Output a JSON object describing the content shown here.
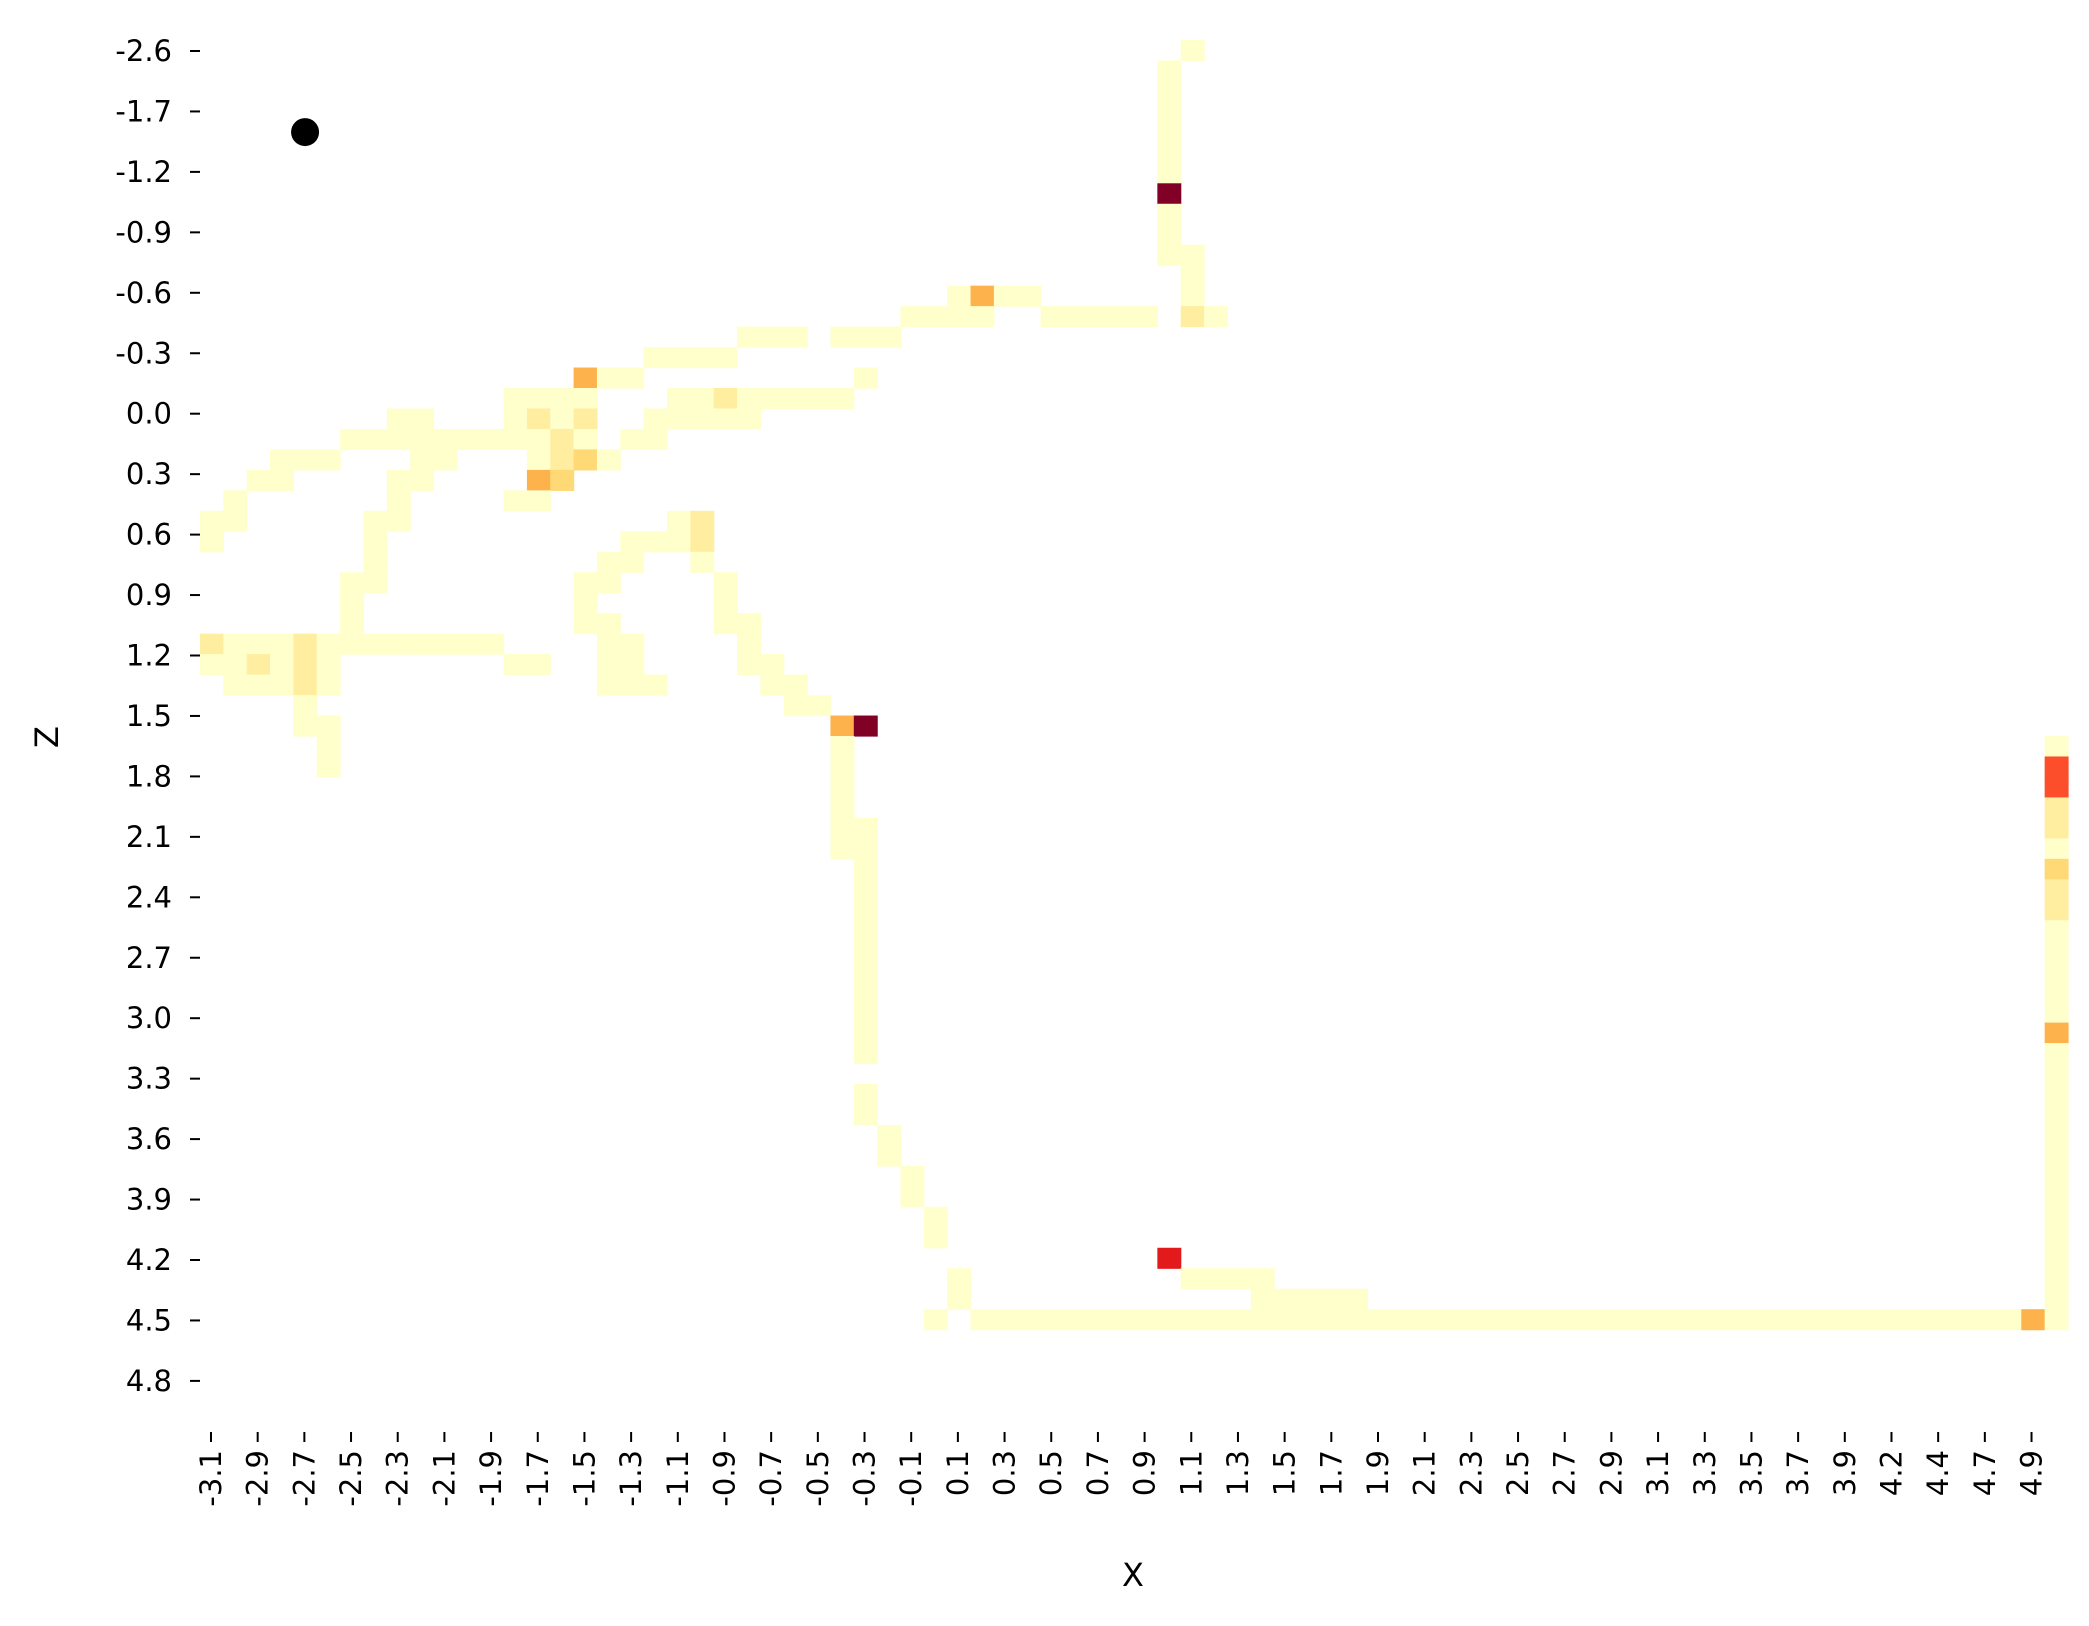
{
  "chart_data": {
    "type": "heatmap",
    "xlabel": "X",
    "ylabel": "Z",
    "x_tick_labels": [
      "-3.1",
      "-2.9",
      "-2.7",
      "-2.5",
      "-2.3",
      "-2.1",
      "-1.9",
      "-1.7",
      "-1.5",
      "-1.3",
      "-1.1",
      "-0.9",
      "-0.7",
      "-0.5",
      "-0.3",
      "-0.1",
      "0.1",
      "0.3",
      "0.5",
      "0.7",
      "0.9",
      "1.1",
      "1.3",
      "1.5",
      "1.7",
      "1.9",
      "2.1",
      "2.3",
      "2.5",
      "2.7",
      "2.9",
      "3.1",
      "3.3",
      "3.5",
      "3.7",
      "3.9",
      "4.2",
      "4.4",
      "4.7",
      "4.9"
    ],
    "y_tick_labels": [
      "-2.6",
      "-1.7",
      "-1.2",
      "-0.9",
      "-0.6",
      "-0.3",
      "0.0",
      "0.3",
      "0.6",
      "0.9",
      "1.2",
      "1.5",
      "1.8",
      "2.1",
      "2.4",
      "2.7",
      "3.0",
      "3.3",
      "3.6",
      "3.9",
      "4.2",
      "4.5",
      "4.8"
    ],
    "n_cols": 80,
    "n_rows": 68,
    "colormap": [
      "#ffffcc",
      "#ffeda0",
      "#fed976",
      "#feb24c",
      "#fd8d3c",
      "#fc4e2a",
      "#e31a1c",
      "#bd0026",
      "#800026"
    ],
    "grid": false,
    "legend": "none",
    "marker": {
      "color": "#000000",
      "col": 4.5,
      "row": 4.5
    },
    "cells": [
      [
        42,
        0,
        1
      ],
      [
        41,
        1,
        1
      ],
      [
        41,
        2,
        1
      ],
      [
        41,
        3,
        1
      ],
      [
        41,
        4,
        1
      ],
      [
        41,
        5,
        1
      ],
      [
        41,
        6,
        1
      ],
      [
        41,
        7,
        9
      ],
      [
        41,
        8,
        1
      ],
      [
        41,
        9,
        1
      ],
      [
        41,
        10,
        1
      ],
      [
        42,
        10,
        1
      ],
      [
        42,
        11,
        1
      ],
      [
        42,
        12,
        1
      ],
      [
        32,
        12,
        1
      ],
      [
        33,
        12,
        4
      ],
      [
        34,
        12,
        1
      ],
      [
        35,
        12,
        1
      ],
      [
        31,
        13,
        1
      ],
      [
        32,
        13,
        1
      ],
      [
        33,
        13,
        1
      ],
      [
        36,
        13,
        1
      ],
      [
        37,
        13,
        1
      ],
      [
        38,
        13,
        1
      ],
      [
        39,
        13,
        1
      ],
      [
        40,
        13,
        1
      ],
      [
        42,
        13,
        2
      ],
      [
        43,
        13,
        1
      ],
      [
        30,
        13,
        1
      ],
      [
        23,
        14,
        1
      ],
      [
        24,
        14,
        1
      ],
      [
        25,
        14,
        1
      ],
      [
        27,
        14,
        1
      ],
      [
        28,
        14,
        1
      ],
      [
        29,
        14,
        1
      ],
      [
        19,
        15,
        1
      ],
      [
        20,
        15,
        1
      ],
      [
        21,
        15,
        1
      ],
      [
        22,
        15,
        1
      ],
      [
        16,
        16,
        4
      ],
      [
        17,
        16,
        1
      ],
      [
        18,
        16,
        1
      ],
      [
        28,
        16,
        1
      ],
      [
        13,
        17,
        1
      ],
      [
        14,
        17,
        1
      ],
      [
        15,
        17,
        1
      ],
      [
        16,
        17,
        1
      ],
      [
        20,
        17,
        1
      ],
      [
        21,
        17,
        1
      ],
      [
        22,
        17,
        2
      ],
      [
        23,
        17,
        1
      ],
      [
        24,
        17,
        1
      ],
      [
        25,
        17,
        1
      ],
      [
        26,
        17,
        1
      ],
      [
        27,
        17,
        1
      ],
      [
        8,
        18,
        1
      ],
      [
        9,
        18,
        1
      ],
      [
        13,
        18,
        1
      ],
      [
        14,
        18,
        2
      ],
      [
        15,
        18,
        1
      ],
      [
        16,
        18,
        2
      ],
      [
        19,
        18,
        1
      ],
      [
        20,
        18,
        1
      ],
      [
        21,
        18,
        1
      ],
      [
        22,
        18,
        1
      ],
      [
        23,
        18,
        1
      ],
      [
        6,
        19,
        1
      ],
      [
        7,
        19,
        1
      ],
      [
        8,
        19,
        1
      ],
      [
        9,
        19,
        1
      ],
      [
        10,
        19,
        1
      ],
      [
        11,
        19,
        1
      ],
      [
        12,
        19,
        1
      ],
      [
        13,
        19,
        1
      ],
      [
        14,
        19,
        1
      ],
      [
        15,
        19,
        2
      ],
      [
        16,
        19,
        1
      ],
      [
        18,
        19,
        1
      ],
      [
        19,
        19,
        1
      ],
      [
        3,
        20,
        1
      ],
      [
        4,
        20,
        1
      ],
      [
        5,
        20,
        1
      ],
      [
        9,
        20,
        1
      ],
      [
        10,
        20,
        1
      ],
      [
        14,
        20,
        1
      ],
      [
        15,
        20,
        2
      ],
      [
        16,
        20,
        3
      ],
      [
        17,
        20,
        1
      ],
      [
        2,
        21,
        1
      ],
      [
        3,
        21,
        1
      ],
      [
        8,
        21,
        1
      ],
      [
        9,
        21,
        1
      ],
      [
        14,
        21,
        4
      ],
      [
        15,
        21,
        3
      ],
      [
        1,
        22,
        1
      ],
      [
        8,
        22,
        1
      ],
      [
        13,
        22,
        1
      ],
      [
        14,
        22,
        1
      ],
      [
        0,
        23,
        1
      ],
      [
        1,
        23,
        1
      ],
      [
        7,
        23,
        1
      ],
      [
        8,
        23,
        1
      ],
      [
        20,
        23,
        1
      ],
      [
        21,
        23,
        2
      ],
      [
        0,
        24,
        1
      ],
      [
        7,
        24,
        1
      ],
      [
        18,
        24,
        1
      ],
      [
        19,
        24,
        1
      ],
      [
        20,
        24,
        1
      ],
      [
        21,
        24,
        2
      ],
      [
        7,
        25,
        1
      ],
      [
        17,
        25,
        1
      ],
      [
        18,
        25,
        1
      ],
      [
        21,
        25,
        1
      ],
      [
        6,
        26,
        1
      ],
      [
        7,
        26,
        1
      ],
      [
        16,
        26,
        1
      ],
      [
        17,
        26,
        1
      ],
      [
        22,
        26,
        1
      ],
      [
        6,
        27,
        1
      ],
      [
        16,
        27,
        1
      ],
      [
        22,
        27,
        1
      ],
      [
        6,
        28,
        1
      ],
      [
        16,
        28,
        1
      ],
      [
        17,
        28,
        1
      ],
      [
        22,
        28,
        1
      ],
      [
        23,
        28,
        1
      ],
      [
        0,
        29,
        2
      ],
      [
        1,
        29,
        1
      ],
      [
        2,
        29,
        1
      ],
      [
        3,
        29,
        1
      ],
      [
        4,
        29,
        2
      ],
      [
        5,
        29,
        1
      ],
      [
        6,
        29,
        1
      ],
      [
        7,
        29,
        1
      ],
      [
        8,
        29,
        1
      ],
      [
        9,
        29,
        1
      ],
      [
        10,
        29,
        1
      ],
      [
        11,
        29,
        1
      ],
      [
        12,
        29,
        1
      ],
      [
        17,
        29,
        1
      ],
      [
        18,
        29,
        1
      ],
      [
        23,
        29,
        1
      ],
      [
        0,
        30,
        1
      ],
      [
        1,
        30,
        1
      ],
      [
        2,
        30,
        2
      ],
      [
        3,
        30,
        1
      ],
      [
        4,
        30,
        2
      ],
      [
        5,
        30,
        1
      ],
      [
        13,
        30,
        1
      ],
      [
        14,
        30,
        1
      ],
      [
        17,
        30,
        1
      ],
      [
        18,
        30,
        1
      ],
      [
        23,
        30,
        1
      ],
      [
        24,
        30,
        1
      ],
      [
        1,
        31,
        1
      ],
      [
        2,
        31,
        1
      ],
      [
        3,
        31,
        1
      ],
      [
        4,
        31,
        2
      ],
      [
        5,
        31,
        1
      ],
      [
        17,
        31,
        1
      ],
      [
        18,
        31,
        1
      ],
      [
        19,
        31,
        1
      ],
      [
        24,
        31,
        1
      ],
      [
        25,
        31,
        1
      ],
      [
        4,
        32,
        1
      ],
      [
        25,
        32,
        1
      ],
      [
        26,
        32,
        1
      ],
      [
        4,
        33,
        1
      ],
      [
        5,
        33,
        1
      ],
      [
        27,
        33,
        4
      ],
      [
        28,
        33,
        9
      ],
      [
        5,
        34,
        1
      ],
      [
        27,
        34,
        1
      ],
      [
        79,
        34,
        1
      ],
      [
        5,
        35,
        1
      ],
      [
        27,
        35,
        1
      ],
      [
        79,
        35,
        6
      ],
      [
        27,
        36,
        1
      ],
      [
        79,
        36,
        6
      ],
      [
        27,
        37,
        1
      ],
      [
        79,
        37,
        2
      ],
      [
        27,
        38,
        1
      ],
      [
        28,
        38,
        1
      ],
      [
        79,
        38,
        2
      ],
      [
        27,
        39,
        1
      ],
      [
        28,
        39,
        1
      ],
      [
        79,
        39,
        1
      ],
      [
        28,
        40,
        1
      ],
      [
        79,
        40,
        3
      ],
      [
        28,
        41,
        1
      ],
      [
        79,
        41,
        2
      ],
      [
        28,
        42,
        1
      ],
      [
        79,
        42,
        2
      ],
      [
        28,
        43,
        1
      ],
      [
        79,
        43,
        1
      ],
      [
        28,
        44,
        1
      ],
      [
        79,
        44,
        1
      ],
      [
        28,
        45,
        1
      ],
      [
        79,
        45,
        1
      ],
      [
        28,
        46,
        1
      ],
      [
        79,
        46,
        1
      ],
      [
        28,
        47,
        1
      ],
      [
        79,
        47,
        1
      ],
      [
        28,
        48,
        1
      ],
      [
        79,
        48,
        4
      ],
      [
        28,
        49,
        1
      ],
      [
        79,
        49,
        1
      ],
      [
        79,
        50,
        1
      ],
      [
        28,
        51,
        1
      ],
      [
        79,
        51,
        1
      ],
      [
        28,
        52,
        1
      ],
      [
        79,
        52,
        1
      ],
      [
        29,
        53,
        1
      ],
      [
        79,
        53,
        1
      ],
      [
        29,
        54,
        1
      ],
      [
        79,
        54,
        1
      ],
      [
        30,
        55,
        1
      ],
      [
        79,
        55,
        1
      ],
      [
        30,
        56,
        1
      ],
      [
        79,
        56,
        1
      ],
      [
        31,
        57,
        1
      ],
      [
        79,
        57,
        1
      ],
      [
        31,
        58,
        1
      ],
      [
        79,
        58,
        1
      ],
      [
        41,
        59,
        7
      ],
      [
        79,
        59,
        1
      ],
      [
        32,
        60,
        1
      ],
      [
        42,
        60,
        1
      ],
      [
        43,
        60,
        1
      ],
      [
        44,
        60,
        1
      ],
      [
        45,
        60,
        1
      ],
      [
        79,
        60,
        1
      ],
      [
        32,
        61,
        1
      ],
      [
        45,
        61,
        1
      ],
      [
        46,
        61,
        1
      ],
      [
        47,
        61,
        1
      ],
      [
        48,
        61,
        1
      ],
      [
        49,
        61,
        1
      ],
      [
        79,
        61,
        1
      ],
      [
        31,
        62,
        1
      ],
      [
        33,
        62,
        1
      ],
      [
        34,
        62,
        1
      ],
      [
        35,
        62,
        1
      ],
      [
        36,
        62,
        1
      ],
      [
        37,
        62,
        1
      ],
      [
        38,
        62,
        1
      ],
      [
        39,
        62,
        1
      ],
      [
        40,
        62,
        1
      ],
      [
        41,
        62,
        1
      ],
      [
        42,
        62,
        1
      ],
      [
        43,
        62,
        1
      ],
      [
        44,
        62,
        1
      ],
      [
        45,
        62,
        1
      ],
      [
        46,
        62,
        1
      ],
      [
        47,
        62,
        1
      ],
      [
        48,
        62,
        1
      ],
      [
        49,
        62,
        1
      ],
      [
        50,
        62,
        1
      ],
      [
        51,
        62,
        1
      ],
      [
        52,
        62,
        1
      ],
      [
        53,
        62,
        1
      ],
      [
        54,
        62,
        1
      ],
      [
        55,
        62,
        1
      ],
      [
        56,
        62,
        1
      ],
      [
        57,
        62,
        1
      ],
      [
        58,
        62,
        1
      ],
      [
        59,
        62,
        1
      ],
      [
        60,
        62,
        1
      ],
      [
        61,
        62,
        1
      ],
      [
        62,
        62,
        1
      ],
      [
        63,
        62,
        1
      ],
      [
        64,
        62,
        1
      ],
      [
        65,
        62,
        1
      ],
      [
        66,
        62,
        1
      ],
      [
        67,
        62,
        1
      ],
      [
        68,
        62,
        1
      ],
      [
        69,
        62,
        1
      ],
      [
        70,
        62,
        1
      ],
      [
        71,
        62,
        1
      ],
      [
        72,
        62,
        1
      ],
      [
        73,
        62,
        1
      ],
      [
        74,
        62,
        1
      ],
      [
        75,
        62,
        1
      ],
      [
        76,
        62,
        1
      ],
      [
        77,
        62,
        1
      ],
      [
        78,
        62,
        4
      ],
      [
        79,
        62,
        1
      ]
    ]
  }
}
